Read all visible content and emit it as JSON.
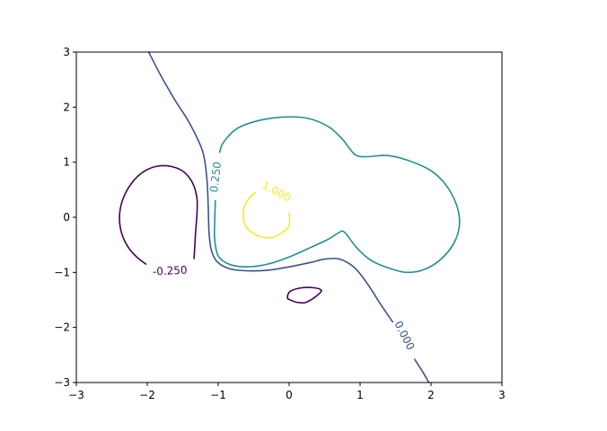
{
  "chart_data": {
    "type": "contour",
    "title": "",
    "xlabel": "",
    "ylabel": "",
    "xlim": [
      -3,
      3
    ],
    "ylim": [
      -3,
      3
    ],
    "grid": false,
    "x_ticks": [
      -3,
      -2,
      -1,
      0,
      1,
      2,
      3
    ],
    "y_ticks": [
      -3,
      -2,
      -1,
      0,
      1,
      2,
      3
    ],
    "x_tick_labels": [
      "−3",
      "−2",
      "−1",
      "0",
      "1",
      "2",
      "3"
    ],
    "y_tick_labels": [
      "−3",
      "−2",
      "−1",
      "0",
      "1",
      "2",
      "3"
    ],
    "levels": [
      {
        "level": -0.25,
        "label": "-0.250",
        "color": "#440154",
        "label_at": [
          -1.68,
          -0.98
        ],
        "label_angle": -3,
        "segments": [
          [
            [
              -2.02,
              -0.85
            ],
            [
              -2.15,
              -0.72
            ],
            [
              -2.28,
              -0.52
            ],
            [
              -2.37,
              -0.25
            ],
            [
              -2.39,
              0.05
            ],
            [
              -2.34,
              0.34
            ],
            [
              -2.22,
              0.62
            ],
            [
              -2.05,
              0.83
            ],
            [
              -1.85,
              0.93
            ],
            [
              -1.65,
              0.92
            ],
            [
              -1.48,
              0.82
            ],
            [
              -1.36,
              0.62
            ],
            [
              -1.3,
              0.35
            ],
            [
              -1.3,
              0.05
            ],
            [
              -1.32,
              -0.3
            ],
            [
              -1.34,
              -0.75
            ]
          ],
          [
            [
              -0.02,
              -1.48
            ],
            [
              0.1,
              -1.54
            ],
            [
              0.22,
              -1.55
            ],
            [
              0.33,
              -1.48
            ],
            [
              0.43,
              -1.38
            ],
            [
              0.45,
              -1.32
            ],
            [
              0.35,
              -1.28
            ],
            [
              0.18,
              -1.28
            ],
            [
              0.02,
              -1.34
            ],
            [
              -0.02,
              -1.42
            ],
            [
              -0.02,
              -1.48
            ]
          ]
        ]
      },
      {
        "level": 0.0,
        "label": "0.000",
        "color": "#3b528b",
        "label_at": [
          1.62,
          -2.15
        ],
        "label_angle": 63,
        "segments": [
          [
            [
              -1.98,
              3.0
            ],
            [
              -1.82,
              2.6
            ],
            [
              -1.62,
              2.15
            ],
            [
              -1.4,
              1.7
            ],
            [
              -1.22,
              1.2
            ],
            [
              -1.16,
              0.7
            ],
            [
              -1.14,
              0.2
            ],
            [
              -1.13,
              -0.25
            ],
            [
              -1.1,
              -0.58
            ],
            [
              -1.02,
              -0.8
            ],
            [
              -0.85,
              -0.93
            ],
            [
              -0.62,
              -0.97
            ],
            [
              -0.3,
              -0.96
            ],
            [
              0.0,
              -0.9
            ],
            [
              0.3,
              -0.82
            ],
            [
              0.5,
              -0.76
            ],
            [
              0.68,
              -0.75
            ],
            [
              0.82,
              -0.82
            ],
            [
              0.95,
              -0.95
            ],
            [
              1.1,
              -1.2
            ],
            [
              1.3,
              -1.6
            ],
            [
              1.46,
              -1.9
            ]
          ],
          [
            [
              1.77,
              -2.58
            ],
            [
              1.88,
              -2.8
            ],
            [
              1.97,
              -3.0
            ]
          ]
        ]
      },
      {
        "level": 0.25,
        "label": "0.250",
        "color": "#21918c",
        "label_at": [
          -1.03,
          0.73
        ],
        "label_angle": -83,
        "segments": [
          [
            [
              -0.98,
              1.18
            ],
            [
              -0.93,
              1.35
            ],
            [
              -0.75,
              1.6
            ],
            [
              -0.45,
              1.75
            ],
            [
              -0.1,
              1.82
            ],
            [
              0.25,
              1.8
            ],
            [
              0.55,
              1.65
            ],
            [
              0.75,
              1.42
            ],
            [
              0.85,
              1.25
            ],
            [
              0.95,
              1.12
            ],
            [
              1.1,
              1.1
            ],
            [
              1.4,
              1.12
            ],
            [
              1.75,
              1.0
            ],
            [
              2.05,
              0.8
            ],
            [
              2.28,
              0.45
            ],
            [
              2.4,
              0.0
            ],
            [
              2.35,
              -0.4
            ],
            [
              2.15,
              -0.75
            ],
            [
              1.9,
              -0.95
            ],
            [
              1.65,
              -1.0
            ],
            [
              1.4,
              -0.92
            ],
            [
              1.15,
              -0.78
            ],
            [
              0.95,
              -0.55
            ],
            [
              0.78,
              -0.27
            ],
            [
              0.7,
              -0.28
            ],
            [
              0.55,
              -0.4
            ],
            [
              0.3,
              -0.55
            ],
            [
              0.0,
              -0.72
            ],
            [
              -0.3,
              -0.85
            ],
            [
              -0.6,
              -0.9
            ],
            [
              -0.85,
              -0.85
            ],
            [
              -1.0,
              -0.7
            ],
            [
              -1.05,
              -0.4
            ],
            [
              -1.05,
              -0.1
            ],
            [
              -1.04,
              0.3
            ]
          ]
        ]
      },
      {
        "level": 1.0,
        "label": "1.000",
        "color": "#fde725",
        "label_at": [
          -0.18,
          0.46
        ],
        "label_angle": 28,
        "segments": [
          [
            [
              -0.48,
              0.45
            ],
            [
              -0.6,
              0.28
            ],
            [
              -0.65,
              0.05
            ],
            [
              -0.6,
              -0.18
            ],
            [
              -0.45,
              -0.33
            ],
            [
              -0.25,
              -0.37
            ],
            [
              -0.1,
              -0.28
            ],
            [
              0.0,
              -0.15
            ],
            [
              0.0,
              0.08
            ]
          ]
        ]
      }
    ]
  }
}
